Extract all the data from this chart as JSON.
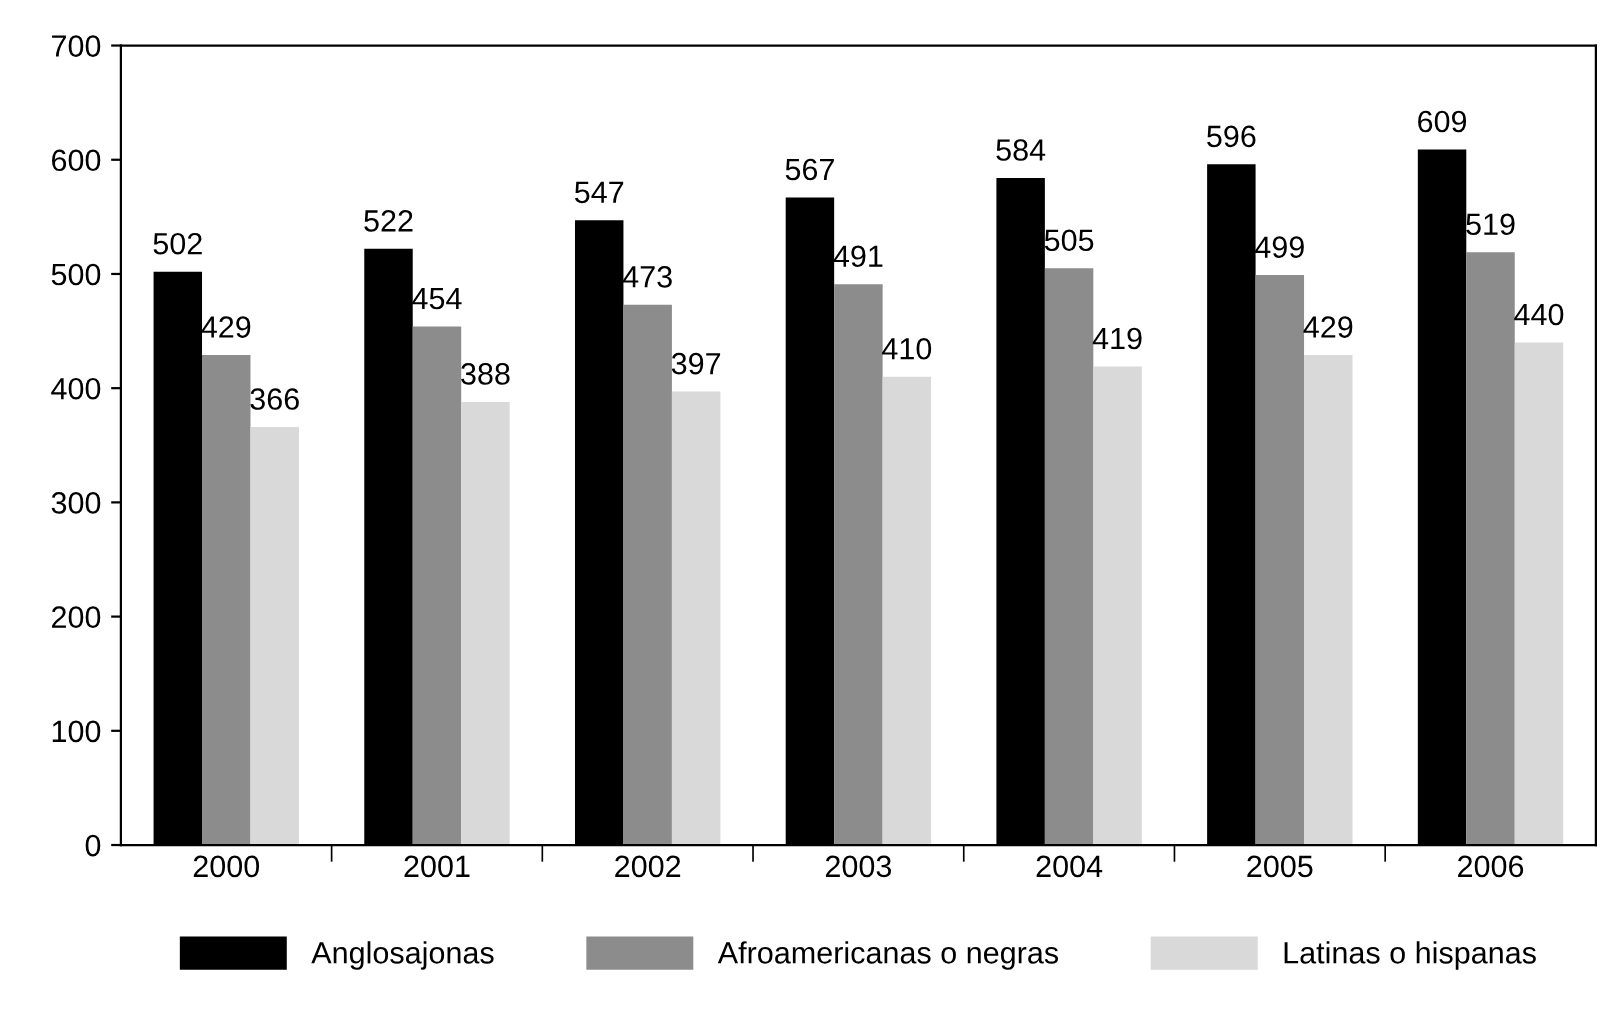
{
  "chart_data": {
    "type": "bar",
    "categories": [
      "2000",
      "2001",
      "2002",
      "2003",
      "2004",
      "2005",
      "2006"
    ],
    "series": [
      {
        "name": "Anglosajonas",
        "color": "#000000",
        "values": [
          502,
          522,
          547,
          567,
          584,
          596,
          609
        ]
      },
      {
        "name": "Afroamericanas o negras",
        "color": "#8c8c8c",
        "values": [
          429,
          454,
          473,
          491,
          505,
          499,
          519
        ]
      },
      {
        "name": "Latinas o hispanas",
        "color": "#d9d9d9",
        "values": [
          366,
          388,
          397,
          410,
          419,
          429,
          440
        ]
      }
    ],
    "ylim": [
      0,
      700
    ],
    "yticks": [
      0,
      100,
      200,
      300,
      400,
      500,
      600,
      700
    ],
    "data_labels": true,
    "legend": "bottom",
    "grid": false
  }
}
